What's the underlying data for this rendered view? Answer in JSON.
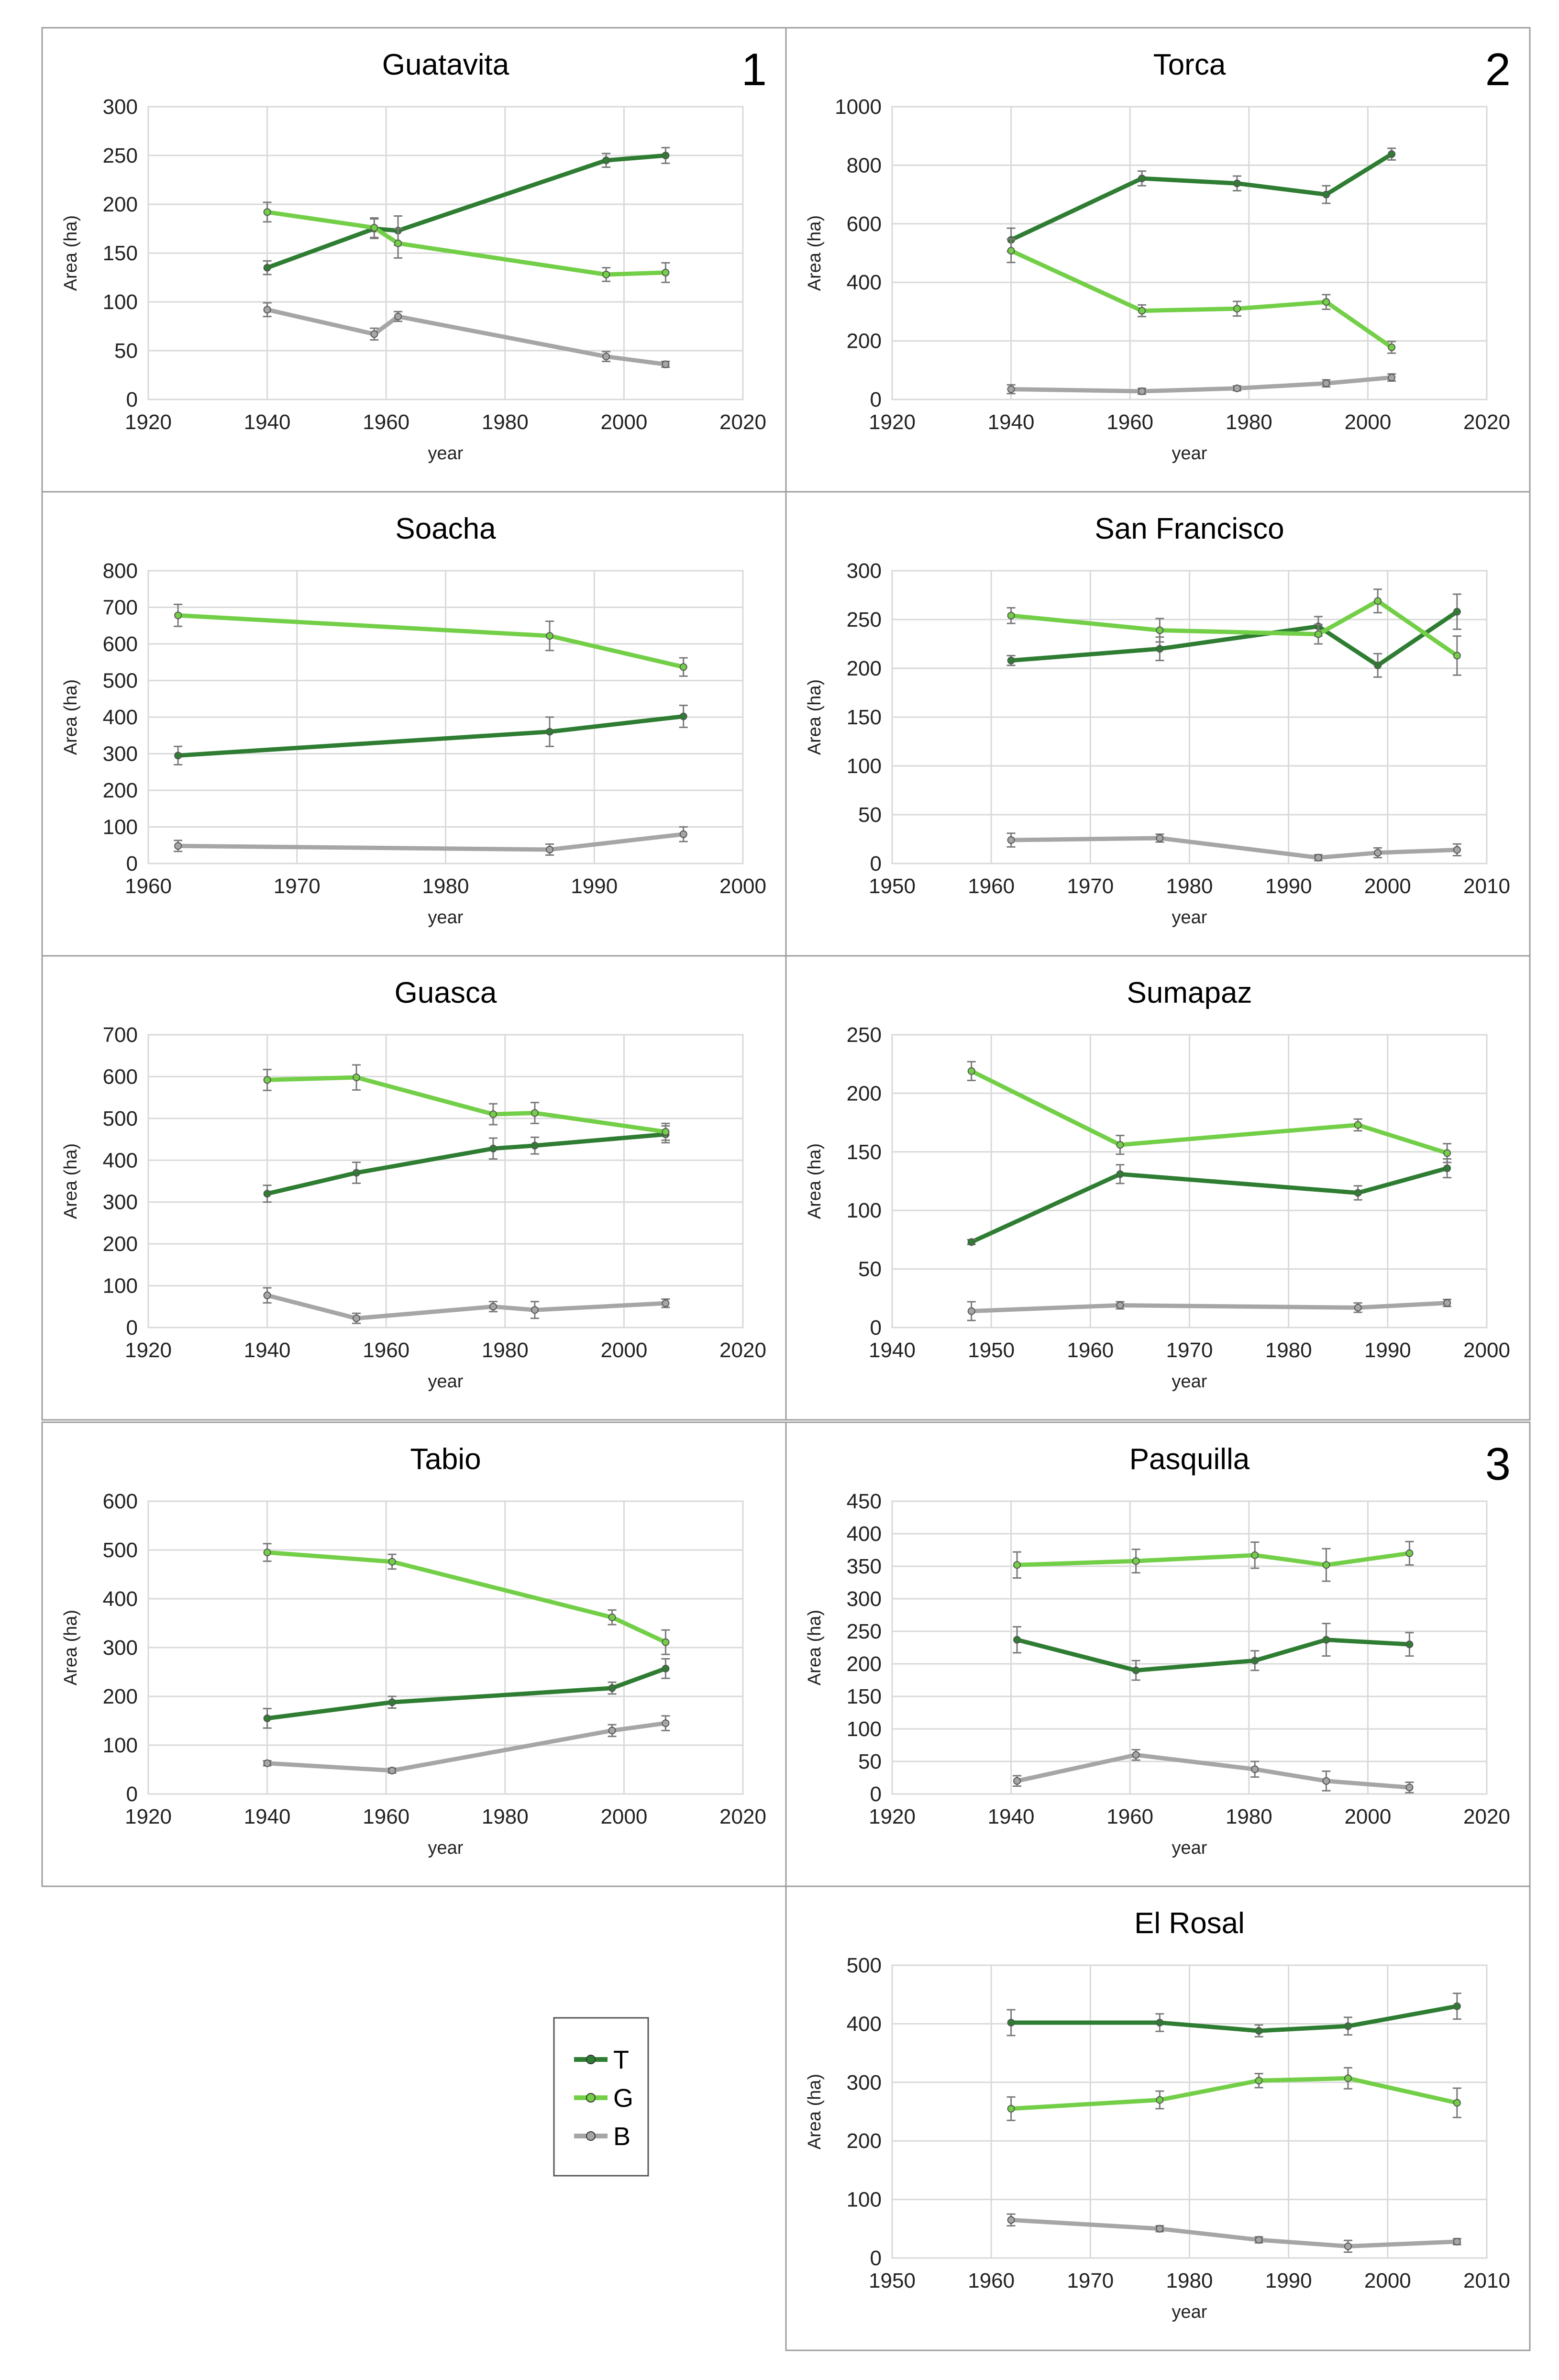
{
  "legend": [
    {
      "key": "T",
      "color": "#2e7d32"
    },
    {
      "key": "G",
      "color": "#73cf47"
    },
    {
      "key": "B",
      "color": "#a6a6a6"
    }
  ],
  "chart_data": [
    {
      "type": "line",
      "title": "Guatavita",
      "number": "1",
      "xlabel": "year",
      "ylabel": "Area (ha)",
      "xlim": [
        1920,
        2020
      ],
      "xticks": [
        1920,
        1940,
        1960,
        1980,
        2000,
        2020
      ],
      "ylim": [
        0,
        300
      ],
      "yticks": [
        0,
        50,
        100,
        150,
        200,
        250,
        300
      ],
      "series": [
        {
          "name": "T",
          "x": [
            1940,
            1958,
            1962,
            1997,
            2007
          ],
          "y": [
            135,
            175,
            173,
            245,
            250
          ],
          "err": [
            7,
            10,
            15,
            7,
            8
          ]
        },
        {
          "name": "G",
          "x": [
            1940,
            1958,
            1962,
            1997,
            2007
          ],
          "y": [
            192,
            176,
            160,
            128,
            130
          ],
          "err": [
            10,
            10,
            15,
            7,
            10
          ]
        },
        {
          "name": "B",
          "x": [
            1940,
            1958,
            1962,
            1997,
            2007
          ],
          "y": [
            92,
            67,
            85,
            44,
            36
          ],
          "err": [
            7,
            6,
            5,
            5,
            3
          ]
        }
      ]
    },
    {
      "type": "line",
      "title": "Torca",
      "number": "2",
      "xlabel": "year",
      "ylabel": "Area (ha)",
      "xlim": [
        1920,
        2020
      ],
      "xticks": [
        1920,
        1940,
        1960,
        1980,
        2000,
        2020
      ],
      "ylim": [
        0,
        1000
      ],
      "yticks": [
        0,
        200,
        400,
        600,
        800,
        1000
      ],
      "series": [
        {
          "name": "T",
          "x": [
            1940,
            1962,
            1978,
            1993,
            2004
          ],
          "y": [
            545,
            755,
            738,
            700,
            838
          ],
          "err": [
            40,
            25,
            25,
            30,
            20
          ]
        },
        {
          "name": "G",
          "x": [
            1940,
            1962,
            1978,
            1993,
            2004
          ],
          "y": [
            508,
            303,
            310,
            333,
            178
          ],
          "err": [
            40,
            20,
            25,
            25,
            20
          ]
        },
        {
          "name": "B",
          "x": [
            1940,
            1962,
            1978,
            1993,
            2004
          ],
          "y": [
            35,
            28,
            38,
            55,
            75
          ],
          "err": [
            15,
            10,
            8,
            12,
            12
          ]
        }
      ]
    },
    {
      "type": "line",
      "title": "Soacha",
      "number": "",
      "xlabel": "year",
      "ylabel": "Area (ha)",
      "xlim": [
        1960,
        2000
      ],
      "xticks": [
        1960,
        1970,
        1980,
        1990,
        2000
      ],
      "ylim": [
        0,
        800
      ],
      "yticks": [
        0,
        100,
        200,
        300,
        400,
        500,
        600,
        700,
        800
      ],
      "series": [
        {
          "name": "T",
          "x": [
            1962,
            1987,
            1996
          ],
          "y": [
            295,
            360,
            402
          ],
          "err": [
            25,
            40,
            30
          ]
        },
        {
          "name": "G",
          "x": [
            1962,
            1987,
            1996
          ],
          "y": [
            678,
            622,
            537
          ],
          "err": [
            30,
            40,
            25
          ]
        },
        {
          "name": "B",
          "x": [
            1962,
            1987,
            1996
          ],
          "y": [
            48,
            38,
            80
          ],
          "err": [
            15,
            15,
            20
          ]
        }
      ]
    },
    {
      "type": "line",
      "title": "San Francisco",
      "number": "",
      "xlabel": "year",
      "ylabel": "Area (ha)",
      "xlim": [
        1950,
        2010
      ],
      "xticks": [
        1950,
        1960,
        1970,
        1980,
        1990,
        2000,
        2010
      ],
      "ylim": [
        0,
        300
      ],
      "yticks": [
        0,
        50,
        100,
        150,
        200,
        250,
        300
      ],
      "series": [
        {
          "name": "T",
          "x": [
            1962,
            1977,
            1993,
            1999,
            2007
          ],
          "y": [
            208,
            220,
            243,
            203,
            258
          ],
          "err": [
            5,
            12,
            10,
            12,
            18
          ]
        },
        {
          "name": "G",
          "x": [
            1962,
            1977,
            1993,
            1999,
            2007
          ],
          "y": [
            254,
            239,
            235,
            269,
            213
          ],
          "err": [
            8,
            12,
            10,
            12,
            20
          ]
        },
        {
          "name": "B",
          "x": [
            1962,
            1977,
            1993,
            1999,
            2007
          ],
          "y": [
            24,
            26,
            6,
            11,
            14
          ],
          "err": [
            7,
            4,
            3,
            5,
            6
          ]
        }
      ]
    },
    {
      "type": "line",
      "title": "Guasca",
      "number": "",
      "xlabel": "year",
      "ylabel": "Area (ha)",
      "xlim": [
        1920,
        2020
      ],
      "xticks": [
        1920,
        1940,
        1960,
        1980,
        2000,
        2020
      ],
      "ylim": [
        0,
        700
      ],
      "yticks": [
        0,
        100,
        200,
        300,
        400,
        500,
        600,
        700
      ],
      "series": [
        {
          "name": "T",
          "x": [
            1940,
            1955,
            1978,
            1985,
            2007
          ],
          "y": [
            320,
            370,
            428,
            435,
            462
          ],
          "err": [
            20,
            25,
            25,
            20,
            20
          ]
        },
        {
          "name": "G",
          "x": [
            1940,
            1955,
            1978,
            1985,
            2007
          ],
          "y": [
            592,
            598,
            510,
            513,
            468
          ],
          "err": [
            25,
            30,
            25,
            25,
            20
          ]
        },
        {
          "name": "B",
          "x": [
            1940,
            1955,
            1978,
            1985,
            2007
          ],
          "y": [
            77,
            22,
            50,
            42,
            58
          ],
          "err": [
            18,
            12,
            12,
            20,
            10
          ]
        }
      ]
    },
    {
      "type": "line",
      "title": "Sumapaz",
      "number": "",
      "xlabel": "year",
      "ylabel": "Area (ha)",
      "xlim": [
        1940,
        2000
      ],
      "xticks": [
        1940,
        1950,
        1960,
        1970,
        1980,
        1990,
        2000
      ],
      "ylim": [
        0,
        250
      ],
      "yticks": [
        0,
        50,
        100,
        150,
        200,
        250
      ],
      "series": [
        {
          "name": "T",
          "x": [
            1948,
            1963,
            1987,
            1996
          ],
          "y": [
            73,
            131,
            115,
            136
          ],
          "err": [
            2,
            8,
            6,
            8
          ]
        },
        {
          "name": "G",
          "x": [
            1948,
            1963,
            1987,
            1996
          ],
          "y": [
            219,
            156,
            173,
            149
          ],
          "err": [
            8,
            8,
            5,
            8
          ]
        },
        {
          "name": "B",
          "x": [
            1948,
            1963,
            1987,
            1996
          ],
          "y": [
            14,
            19,
            17,
            21
          ],
          "err": [
            8,
            3,
            4,
            3
          ]
        }
      ]
    },
    {
      "type": "line",
      "title": "Tabio",
      "number": "",
      "xlabel": "year",
      "ylabel": "Area (ha)",
      "xlim": [
        1920,
        2020
      ],
      "xticks": [
        1920,
        1940,
        1960,
        1980,
        2000,
        2020
      ],
      "ylim": [
        0,
        600
      ],
      "yticks": [
        0,
        100,
        200,
        300,
        400,
        500,
        600
      ],
      "series": [
        {
          "name": "T",
          "x": [
            1940,
            1961,
            1998,
            2007
          ],
          "y": [
            155,
            188,
            217,
            257
          ],
          "err": [
            20,
            12,
            12,
            20
          ]
        },
        {
          "name": "G",
          "x": [
            1940,
            1961,
            1998,
            2007
          ],
          "y": [
            495,
            476,
            362,
            311
          ],
          "err": [
            18,
            15,
            15,
            25
          ]
        },
        {
          "name": "B",
          "x": [
            1940,
            1961,
            1998,
            2007
          ],
          "y": [
            63,
            48,
            130,
            145
          ],
          "err": [
            5,
            5,
            12,
            15
          ]
        }
      ]
    },
    {
      "type": "line",
      "title": "Pasquilla",
      "number": "3",
      "xlabel": "year",
      "ylabel": "Area (ha)",
      "xlim": [
        1920,
        2020
      ],
      "xticks": [
        1920,
        1940,
        1960,
        1980,
        2000,
        2020
      ],
      "ylim": [
        0,
        450
      ],
      "yticks": [
        0,
        50,
        100,
        150,
        200,
        250,
        300,
        350,
        400,
        450
      ],
      "series": [
        {
          "name": "T",
          "x": [
            1941,
            1961,
            1981,
            1993,
            2007
          ],
          "y": [
            237,
            190,
            205,
            237,
            230
          ],
          "err": [
            20,
            15,
            15,
            25,
            18
          ]
        },
        {
          "name": "G",
          "x": [
            1941,
            1961,
            1981,
            1993,
            2007
          ],
          "y": [
            352,
            358,
            367,
            352,
            370
          ],
          "err": [
            20,
            18,
            20,
            25,
            18
          ]
        },
        {
          "name": "B",
          "x": [
            1941,
            1961,
            1981,
            1993,
            2007
          ],
          "y": [
            20,
            60,
            38,
            20,
            10
          ],
          "err": [
            8,
            8,
            12,
            15,
            8
          ]
        }
      ]
    },
    {
      "type": "line",
      "title": "El Rosal",
      "number": "",
      "xlabel": "year",
      "ylabel": "Area (ha)",
      "xlim": [
        1950,
        2010
      ],
      "xticks": [
        1950,
        1960,
        1970,
        1980,
        1990,
        2000,
        2010
      ],
      "ylim": [
        0,
        500
      ],
      "yticks": [
        0,
        100,
        200,
        300,
        400,
        500
      ],
      "series": [
        {
          "name": "T",
          "x": [
            1962,
            1977,
            1987,
            1996,
            2007
          ],
          "y": [
            402,
            402,
            388,
            396,
            430
          ],
          "err": [
            22,
            15,
            10,
            15,
            22
          ]
        },
        {
          "name": "G",
          "x": [
            1962,
            1977,
            1987,
            1996,
            2007
          ],
          "y": [
            255,
            270,
            303,
            307,
            265
          ],
          "err": [
            20,
            15,
            12,
            18,
            25
          ]
        },
        {
          "name": "B",
          "x": [
            1962,
            1977,
            1987,
            1996,
            2007
          ],
          "y": [
            65,
            50,
            31,
            20,
            28
          ],
          "err": [
            10,
            5,
            5,
            10,
            5
          ]
        }
      ]
    }
  ]
}
